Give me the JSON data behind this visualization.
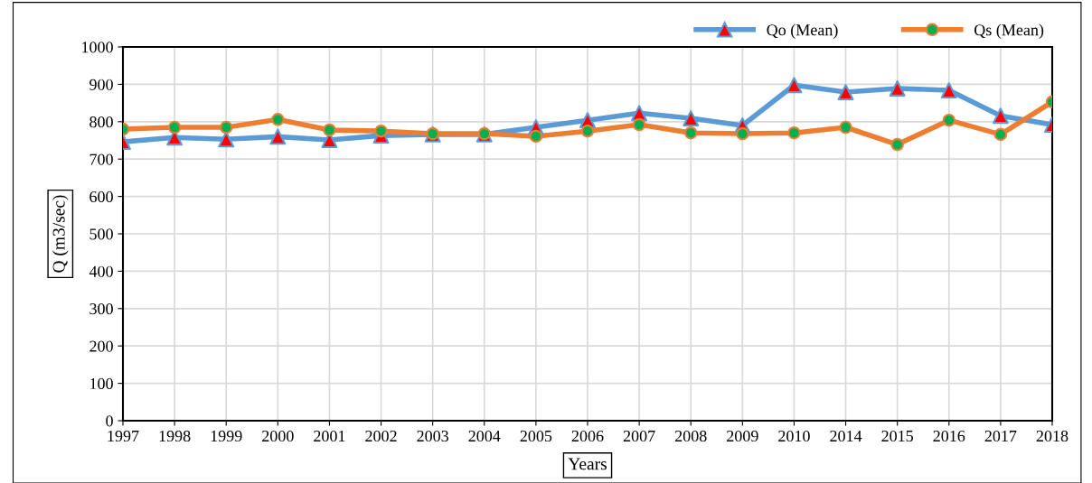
{
  "chart_data": {
    "type": "line",
    "xlabel": "Years",
    "ylabel": "Q (m3/sec)",
    "categories": [
      "1997",
      "1998",
      "1999",
      "2000",
      "2001",
      "2002",
      "2003",
      "2004",
      "2005",
      "2006",
      "2007",
      "2008",
      "2009",
      "2010",
      "2014",
      "2015",
      "2016",
      "2017",
      "2018"
    ],
    "series": [
      {
        "name": "Qo (Mean)",
        "color": "#5b9bd5",
        "marker": "triangle",
        "colors": [
          "#ff0000",
          "#ff0000",
          "#ff0000",
          "#ff0000",
          "#ff0000",
          "#ff0000",
          "#ff0000",
          "#ff0000",
          "#ff0000",
          "#ff0000",
          "#ff0000",
          "#ff0000",
          "#ff0000",
          "#ff0000",
          "#ff0000",
          "#ff0000",
          "#ff0000",
          "#ff0000",
          "#ff0000"
        ],
        "values": [
          746,
          758,
          753,
          760,
          751,
          763,
          766,
          766,
          785,
          804,
          823,
          809,
          790,
          898,
          879,
          889,
          884,
          816,
          792
        ]
      },
      {
        "name": "Qs (Mean)",
        "color": "#ed7d31",
        "marker": "circle",
        "colors": [
          "#00b050",
          "#00b050",
          "#00b050",
          "#00b050",
          "#00b050",
          "#00b050",
          "#00b050",
          "#00b050",
          "#00b050",
          "#00b050",
          "#00b050",
          "#00b050",
          "#00b050",
          "#00b050",
          "#00b050",
          "#00b050",
          "#00b050",
          "#00b050",
          "#00b050"
        ],
        "values": [
          780,
          785,
          785,
          806,
          778,
          775,
          768,
          768,
          761,
          775,
          792,
          770,
          768,
          770,
          785,
          739,
          804,
          766,
          853
        ]
      }
    ],
    "ylim": [
      0,
      1000
    ],
    "yticks": [
      0,
      100,
      200,
      300,
      400,
      500,
      600,
      700,
      800,
      900,
      1000
    ],
    "grid": true,
    "legend": "top right",
    "line_style": "solid"
  }
}
